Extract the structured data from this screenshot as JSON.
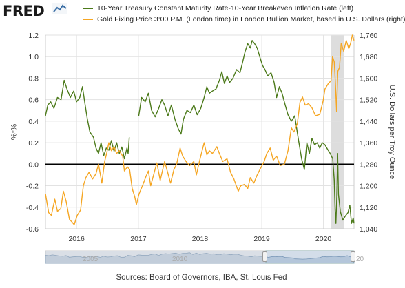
{
  "header": {
    "logo_text": "FRED",
    "logo_mark_icon": "fred-chart-logo-icon"
  },
  "chart_data": {
    "type": "line",
    "series": [
      {
        "name": "10-Year Treasury Constant Maturity Rate-10-Year Breakeven Inflation Rate (left)",
        "axis": "left",
        "color": "#4c7a1a",
        "points": [
          [
            "2015-07-01",
            0.45
          ],
          [
            "2015-07-15",
            0.55
          ],
          [
            "2015-08-01",
            0.58
          ],
          [
            "2015-08-20",
            0.52
          ],
          [
            "2015-09-10",
            0.62
          ],
          [
            "2015-10-01",
            0.6
          ],
          [
            "2015-10-20",
            0.78
          ],
          [
            "2015-11-05",
            0.7
          ],
          [
            "2015-11-25",
            0.62
          ],
          [
            "2015-12-15",
            0.68
          ],
          [
            "2016-01-01",
            0.58
          ],
          [
            "2016-01-20",
            0.62
          ],
          [
            "2016-02-05",
            0.72
          ],
          [
            "2016-02-20",
            0.56
          ],
          [
            "2016-03-05",
            0.42
          ],
          [
            "2016-03-20",
            0.3
          ],
          [
            "2016-04-10",
            0.25
          ],
          [
            "2016-04-25",
            0.15
          ],
          [
            "2016-05-10",
            0.1
          ],
          [
            "2016-05-25",
            0.2
          ],
          [
            "2016-06-10",
            0.08
          ],
          [
            "2016-06-25",
            0.15
          ],
          [
            "2016-07-10",
            0.13
          ],
          [
            "2016-07-25",
            0.22
          ],
          [
            "2016-08-10",
            0.12
          ],
          [
            "2016-08-25",
            0.2
          ],
          [
            "2016-09-10",
            0.1
          ],
          [
            "2016-09-25",
            0.16
          ],
          [
            "2016-10-10",
            0.05
          ],
          [
            "2016-10-25",
            0.15
          ],
          [
            "2016-11-01",
            0.1
          ],
          [
            "2016-11-08",
            0.25
          ],
          [
            "2016-11-15",
            null
          ],
          [
            "2017-01-03",
            0.45
          ],
          [
            "2017-01-20",
            0.62
          ],
          [
            "2017-02-10",
            0.58
          ],
          [
            "2017-03-01",
            0.66
          ],
          [
            "2017-03-20",
            0.5
          ],
          [
            "2017-04-10",
            0.44
          ],
          [
            "2017-05-01",
            0.52
          ],
          [
            "2017-05-20",
            0.6
          ],
          [
            "2017-06-05",
            0.55
          ],
          [
            "2017-06-25",
            0.45
          ],
          [
            "2017-07-15",
            0.55
          ],
          [
            "2017-08-05",
            0.42
          ],
          [
            "2017-08-25",
            0.33
          ],
          [
            "2017-09-10",
            0.28
          ],
          [
            "2017-09-25",
            0.42
          ],
          [
            "2017-10-15",
            0.5
          ],
          [
            "2017-11-05",
            0.48
          ],
          [
            "2017-11-25",
            0.55
          ],
          [
            "2017-12-15",
            0.46
          ],
          [
            "2018-01-05",
            0.52
          ],
          [
            "2018-01-25",
            0.62
          ],
          [
            "2018-02-10",
            0.72
          ],
          [
            "2018-02-25",
            0.66
          ],
          [
            "2018-03-15",
            0.68
          ],
          [
            "2018-04-05",
            0.7
          ],
          [
            "2018-04-25",
            0.78
          ],
          [
            "2018-05-10",
            0.86
          ],
          [
            "2018-05-25",
            0.75
          ],
          [
            "2018-06-10",
            0.82
          ],
          [
            "2018-06-25",
            0.76
          ],
          [
            "2018-07-15",
            0.8
          ],
          [
            "2018-08-05",
            0.88
          ],
          [
            "2018-08-25",
            0.85
          ],
          [
            "2018-09-10",
            0.95
          ],
          [
            "2018-09-25",
            1.05
          ],
          [
            "2018-10-10",
            1.12
          ],
          [
            "2018-10-25",
            1.08
          ],
          [
            "2018-11-05",
            1.15
          ],
          [
            "2018-11-20",
            1.12
          ],
          [
            "2018-12-05",
            1.08
          ],
          [
            "2018-12-20",
            1.0
          ],
          [
            "2019-01-05",
            0.92
          ],
          [
            "2019-01-20",
            0.88
          ],
          [
            "2019-02-05",
            0.82
          ],
          [
            "2019-02-25",
            0.85
          ],
          [
            "2019-03-15",
            0.76
          ],
          [
            "2019-03-30",
            0.62
          ],
          [
            "2019-04-15",
            0.72
          ],
          [
            "2019-05-01",
            0.66
          ],
          [
            "2019-05-20",
            0.55
          ],
          [
            "2019-06-05",
            0.46
          ],
          [
            "2019-06-25",
            0.4
          ],
          [
            "2019-07-15",
            0.45
          ],
          [
            "2019-08-05",
            0.24
          ],
          [
            "2019-08-25",
            0.05
          ],
          [
            "2019-09-10",
            -0.05
          ],
          [
            "2019-09-25",
            0.2
          ],
          [
            "2019-10-10",
            0.1
          ],
          [
            "2019-10-25",
            0.24
          ],
          [
            "2019-11-10",
            0.18
          ],
          [
            "2019-11-25",
            0.2
          ],
          [
            "2019-12-10",
            0.15
          ],
          [
            "2019-12-25",
            0.2
          ],
          [
            "2020-01-10",
            0.18
          ],
          [
            "2020-01-25",
            0.14
          ],
          [
            "2020-02-10",
            0.1
          ],
          [
            "2020-02-25",
            0.05
          ],
          [
            "2020-03-05",
            -0.15
          ],
          [
            "2020-03-10",
            -0.42
          ],
          [
            "2020-03-15",
            -0.55
          ],
          [
            "2020-03-20",
            -0.3
          ],
          [
            "2020-03-25",
            0.1
          ],
          [
            "2020-03-30",
            -0.28
          ],
          [
            "2020-04-10",
            -0.44
          ],
          [
            "2020-04-25",
            -0.52
          ],
          [
            "2020-05-10",
            -0.48
          ],
          [
            "2020-05-25",
            -0.45
          ],
          [
            "2020-06-05",
            -0.38
          ],
          [
            "2020-06-15",
            -0.55
          ],
          [
            "2020-06-25",
            -0.5
          ],
          [
            "2020-06-30",
            -0.55
          ]
        ]
      },
      {
        "name": "Gold Fixing Price 3:00 P.M. (London time) in London Bullion Market, based in U.S. Dollars (right)",
        "axis": "right",
        "color": "#f5a623",
        "points": [
          [
            "2015-07-01",
            1170
          ],
          [
            "2015-07-20",
            1100
          ],
          [
            "2015-08-05",
            1090
          ],
          [
            "2015-08-25",
            1150
          ],
          [
            "2015-09-10",
            1105
          ],
          [
            "2015-09-30",
            1115
          ],
          [
            "2015-10-15",
            1180
          ],
          [
            "2015-11-01",
            1140
          ],
          [
            "2015-11-20",
            1075
          ],
          [
            "2015-12-05",
            1065
          ],
          [
            "2015-12-18",
            1055
          ],
          [
            "2016-01-05",
            1090
          ],
          [
            "2016-01-25",
            1110
          ],
          [
            "2016-02-10",
            1200
          ],
          [
            "2016-02-25",
            1230
          ],
          [
            "2016-03-15",
            1250
          ],
          [
            "2016-04-05",
            1225
          ],
          [
            "2016-04-25",
            1245
          ],
          [
            "2016-05-10",
            1280
          ],
          [
            "2016-05-30",
            1210
          ],
          [
            "2016-06-15",
            1290
          ],
          [
            "2016-06-27",
            1320
          ],
          [
            "2016-07-10",
            1360
          ],
          [
            "2016-07-25",
            1330
          ],
          [
            "2016-08-10",
            1345
          ],
          [
            "2016-08-25",
            1320
          ],
          [
            "2016-09-10",
            1330
          ],
          [
            "2016-09-30",
            1310
          ],
          [
            "2016-10-10",
            1255
          ],
          [
            "2016-10-28",
            1270
          ],
          [
            "2016-11-10",
            1260
          ],
          [
            "2016-11-25",
            1190
          ],
          [
            "2016-12-10",
            1160
          ],
          [
            "2016-12-20",
            1130
          ],
          [
            "2017-01-05",
            1170
          ],
          [
            "2017-01-25",
            1200
          ],
          [
            "2017-02-15",
            1235
          ],
          [
            "2017-03-01",
            1255
          ],
          [
            "2017-03-15",
            1200
          ],
          [
            "2017-04-05",
            1250
          ],
          [
            "2017-04-20",
            1285
          ],
          [
            "2017-05-10",
            1220
          ],
          [
            "2017-06-05",
            1290
          ],
          [
            "2017-06-25",
            1245
          ],
          [
            "2017-07-10",
            1210
          ],
          [
            "2017-07-30",
            1260
          ],
          [
            "2017-08-15",
            1280
          ],
          [
            "2017-09-05",
            1340
          ],
          [
            "2017-09-20",
            1310
          ],
          [
            "2017-10-10",
            1290
          ],
          [
            "2017-11-01",
            1275
          ],
          [
            "2017-11-25",
            1290
          ],
          [
            "2017-12-10",
            1240
          ],
          [
            "2017-12-28",
            1290
          ],
          [
            "2018-01-15",
            1335
          ],
          [
            "2018-01-25",
            1360
          ],
          [
            "2018-02-10",
            1315
          ],
          [
            "2018-02-25",
            1330
          ],
          [
            "2018-03-15",
            1320
          ],
          [
            "2018-04-10",
            1345
          ],
          [
            "2018-04-25",
            1320
          ],
          [
            "2018-05-15",
            1290
          ],
          [
            "2018-06-10",
            1300
          ],
          [
            "2018-06-30",
            1250
          ],
          [
            "2018-07-20",
            1225
          ],
          [
            "2018-08-15",
            1180
          ],
          [
            "2018-08-30",
            1200
          ],
          [
            "2018-09-20",
            1205
          ],
          [
            "2018-10-10",
            1190
          ],
          [
            "2018-10-25",
            1230
          ],
          [
            "2018-11-15",
            1210
          ],
          [
            "2018-12-05",
            1240
          ],
          [
            "2018-12-25",
            1265
          ],
          [
            "2019-01-15",
            1290
          ],
          [
            "2019-01-31",
            1320
          ],
          [
            "2019-02-20",
            1340
          ],
          [
            "2019-03-10",
            1295
          ],
          [
            "2019-03-30",
            1310
          ],
          [
            "2019-04-20",
            1275
          ],
          [
            "2019-05-15",
            1280
          ],
          [
            "2019-06-05",
            1330
          ],
          [
            "2019-06-25",
            1415
          ],
          [
            "2019-07-10",
            1400
          ],
          [
            "2019-07-30",
            1430
          ],
          [
            "2019-08-15",
            1510
          ],
          [
            "2019-08-30",
            1530
          ],
          [
            "2019-09-15",
            1500
          ],
          [
            "2019-10-05",
            1505
          ],
          [
            "2019-10-25",
            1490
          ],
          [
            "2019-11-15",
            1460
          ],
          [
            "2019-12-10",
            1465
          ],
          [
            "2019-12-30",
            1515
          ],
          [
            "2020-01-10",
            1560
          ],
          [
            "2020-01-30",
            1580
          ],
          [
            "2020-02-15",
            1590
          ],
          [
            "2020-02-24",
            1680
          ],
          [
            "2020-03-05",
            1660
          ],
          [
            "2020-03-12",
            1580
          ],
          [
            "2020-03-19",
            1475
          ],
          [
            "2020-03-26",
            1625
          ],
          [
            "2020-04-05",
            1640
          ],
          [
            "2020-04-15",
            1730
          ],
          [
            "2020-04-30",
            1700
          ],
          [
            "2020-05-15",
            1740
          ],
          [
            "2020-05-30",
            1710
          ],
          [
            "2020-06-10",
            1730
          ],
          [
            "2020-06-20",
            1760
          ],
          [
            "2020-06-30",
            1740
          ]
        ]
      }
    ],
    "left_axis": {
      "label": "%-%",
      "ylim": [
        -0.6,
        1.2
      ],
      "ticks": [
        "-0.6",
        "-0.4",
        "-0.2",
        "0.0",
        "0.2",
        "0.4",
        "0.6",
        "0.8",
        "1.0",
        "1.2"
      ]
    },
    "right_axis": {
      "label": "U.S. Dollars per Troy Ounce",
      "ylim": [
        1040,
        1760
      ],
      "ticks": [
        "1,040",
        "1,120",
        "1,200",
        "1,280",
        "1,360",
        "1,440",
        "1,520",
        "1,600",
        "1,680",
        "1,760"
      ]
    },
    "x_axis": {
      "xlim": [
        "2015-07-01",
        "2020-06-30"
      ],
      "ticks": [
        {
          "date": "2016-01-01",
          "label": "2016"
        },
        {
          "date": "2017-01-01",
          "label": "2017"
        },
        {
          "date": "2018-01-01",
          "label": "2018"
        },
        {
          "date": "2019-01-01",
          "label": "2019"
        },
        {
          "date": "2020-01-01",
          "label": "2020"
        }
      ]
    },
    "recession_band": {
      "start": "2020-02-15",
      "end": "2020-04-30",
      "color": "#dddddd"
    },
    "zero_line": {
      "value": 0.0,
      "color": "#000000"
    },
    "grid": true,
    "legend_position": "top-left"
  },
  "navigator": {
    "left_label": "2005",
    "middle_label": "2010",
    "right_label": "20",
    "range_start": "2015-07-01",
    "range_end": "2020-06-30"
  },
  "footer": {
    "source_text": "Sources: Board of Governors, IBA, St. Louis Fed"
  }
}
